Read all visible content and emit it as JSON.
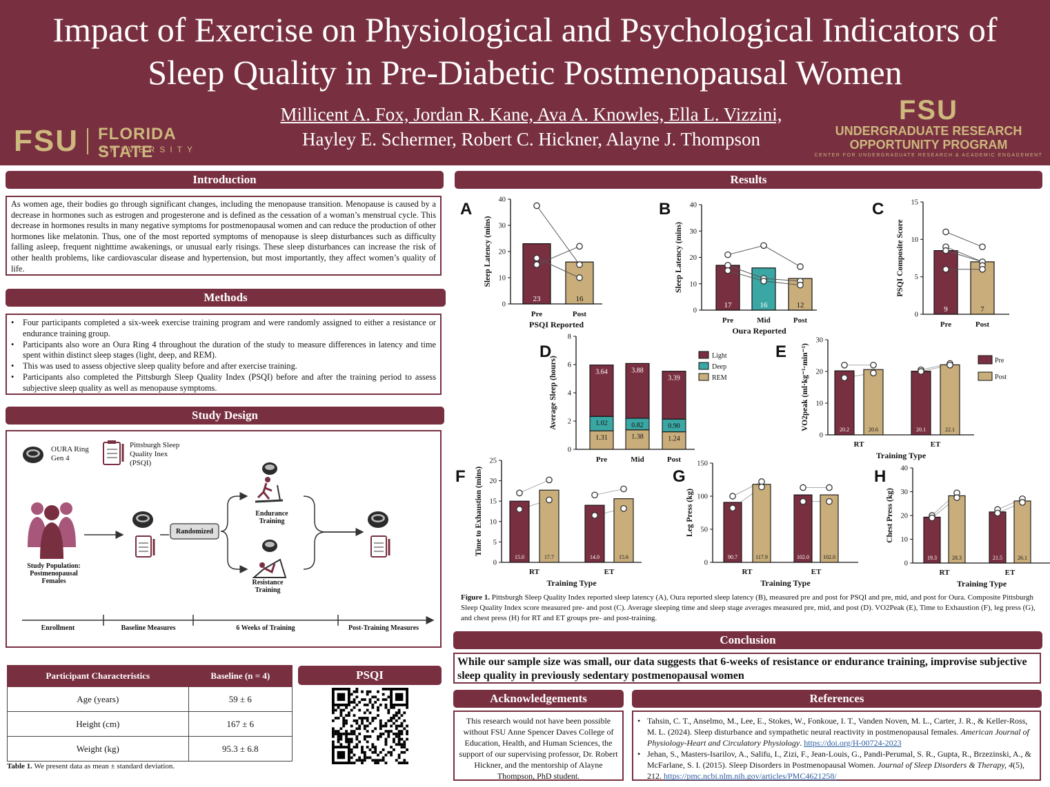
{
  "title": {
    "line1": "Impact of Exercise on Physiological and Psychological Indicators of",
    "line2": "Sleep Quality in Pre-Diabetic Postmenopausal Women"
  },
  "authors": {
    "line1": "Millicent A. Fox, Jordan R. Kane, Ava A. Knowles, Ella L. Vizzini,",
    "line2": "Hayley E. Schermer, Robert C. Hickner, Alayne J. Thompson"
  },
  "logos": {
    "fsu_mark": "FSU",
    "fsu_name": "FLORIDA STATE",
    "fsu_sub": "UNIVERSITY",
    "urop_mark": "FSU",
    "urop_line1": "UNDERGRADUATE RESEARCH",
    "urop_line2": "OPPORTUNITY PROGRAM",
    "urop_small": "CENTER FOR UNDERGRADUATE RESEARCH & ACADEMIC ENGAGEMENT"
  },
  "colors": {
    "garnet": "#782f40",
    "gold": "#c9ae7c",
    "teal": "#3ba7a4",
    "fsu_gold": "#cdb87d"
  },
  "introduction": {
    "heading": "Introduction",
    "text": "As women age, their bodies go through significant changes, including the menopause transition.  Menopause is caused by a decrease in hormones such as estrogen and progesterone and is defined as the cessation of a woman’s menstrual cycle. This decrease in hormones results in many negative symptoms for postmenopausal women and can reduce the production of other hormones like melatonin. Thus, one of the most reported symptoms of menopause is sleep disturbances such as difficulty falling asleep, frequent nighttime awakenings, or unusual early risings. These sleep disturbances can increase the risk of other health problems, like cardiovascular disease and hypertension, but most importantly, they affect women’s quality of life."
  },
  "methods": {
    "heading": "Methods",
    "items": [
      "Four participants completed a six-week exercise training program and were randomly assigned to either a resistance or endurance training group.",
      "Participants also wore an Oura Ring 4 throughout the duration of the study to measure differences in latency and time spent within distinct sleep stages (light, deep, and REM).",
      "This was used to assess objective sleep quality before and after exercise training.",
      "Participants also completed the Pittsburgh Sleep Quality Index (PSQI) before and after the training period to assess subjective sleep quality as well as menopause symptoms."
    ]
  },
  "study_design": {
    "heading": "Study Design",
    "oura_label": "OURA Ring\nGen 4",
    "psqi_label": "Pittsburgh Sleep\nQuality Inex\n(PSQI)",
    "population": "Study Population:\nPostmenopausal\nFemales",
    "randomized": "Randomized",
    "endurance": "Endurance\nTraining",
    "resistance": "Resistance\nTraining",
    "timeline": [
      "Enrollment",
      "Baseline Measures",
      "6 Weeks of Training",
      "Post-Training Measures"
    ]
  },
  "table": {
    "headers": [
      "Participant Characteristics",
      "Baseline (n = 4)"
    ],
    "rows": [
      [
        "Age (years)",
        "59 ± 6"
      ],
      [
        "Height (cm)",
        "167 ± 6"
      ],
      [
        "Weight (kg)",
        "95.3 ± 6.8"
      ]
    ],
    "caption_label": "Table 1.",
    "caption": " We present data as mean ± standard deviation."
  },
  "psqi": {
    "heading": "PSQI"
  },
  "results": {
    "heading": "Results"
  },
  "chart_data": [
    {
      "id": "A",
      "type": "bar",
      "title": "",
      "categories": [
        "Pre",
        "Post"
      ],
      "values": [
        23,
        16
      ],
      "labels": [
        "23",
        "16"
      ],
      "points": [
        [
          37.5,
          17.5,
          15
        ],
        [
          22,
          15,
          10
        ]
      ],
      "lines": [
        [
          37.5,
          15
        ],
        [
          15,
          22
        ],
        [
          17.5,
          10
        ]
      ],
      "xlabel": "PSQI Reported",
      "ylabel": "Sleep Latency (mins)",
      "ylim": [
        0,
        40
      ],
      "yticks": [
        0,
        10,
        20,
        30,
        40
      ]
    },
    {
      "id": "B",
      "type": "bar",
      "title": "",
      "categories": [
        "Pre",
        "Mid",
        "Post"
      ],
      "values": [
        17,
        16,
        12
      ],
      "labels": [
        "17",
        "16",
        "12"
      ],
      "points": [
        [
          21,
          17,
          15
        ],
        [
          24.5,
          12,
          11
        ],
        [
          16.5,
          11,
          9.5
        ]
      ],
      "lines": [
        [
          21,
          24.5,
          16.5
        ],
        [
          17,
          12,
          11
        ],
        [
          15,
          11,
          9.5
        ]
      ],
      "xlabel": "Oura Reported",
      "ylabel": "Sleep Latency (mins)",
      "ylim": [
        0,
        40
      ],
      "yticks": [
        0,
        10,
        20,
        30,
        40
      ]
    },
    {
      "id": "C",
      "type": "bar",
      "title": "",
      "categories": [
        "Pre",
        "Post"
      ],
      "values": [
        8.5,
        7
      ],
      "labels": [
        "9",
        "7"
      ],
      "points": [
        [
          11,
          9,
          8.5,
          6
        ],
        [
          9,
          7,
          6.5,
          6
        ]
      ],
      "lines": [
        [
          11,
          9
        ],
        [
          9,
          7
        ],
        [
          8.5,
          7
        ],
        [
          6,
          6
        ]
      ],
      "xlabel": "",
      "ylabel": "PSQI Composite Score",
      "ylim": [
        0,
        15
      ],
      "yticks": [
        0,
        5,
        10,
        15
      ]
    },
    {
      "id": "D",
      "type": "stacked-bar",
      "categories": [
        "Pre",
        "Mid",
        "Post"
      ],
      "series": [
        {
          "name": "Light",
          "values": [
            3.64,
            3.88,
            3.39
          ]
        },
        {
          "name": "Deep",
          "values": [
            1.02,
            0.82,
            0.9
          ]
        },
        {
          "name": "REM",
          "values": [
            1.31,
            1.38,
            1.24
          ]
        }
      ],
      "labels": {
        "Light": [
          "3.64",
          "3.88",
          "3.39"
        ],
        "Deep": [
          "1.02",
          "0.82",
          "0.90"
        ],
        "REM": [
          "1.31",
          "1.38",
          "1.24"
        ]
      },
      "ylabel": "Average Sleep (hours)",
      "ylim": [
        0,
        8
      ],
      "yticks": [
        0,
        2,
        4,
        6,
        8
      ],
      "legend": [
        "Light",
        "Deep",
        "REM"
      ]
    },
    {
      "id": "E",
      "type": "grouped-bar",
      "categories": [
        "RT",
        "ET"
      ],
      "series": [
        {
          "name": "Pre",
          "values": [
            20.2,
            20.1
          ]
        },
        {
          "name": "Post",
          "values": [
            20.6,
            22.1
          ]
        }
      ],
      "labels": [
        [
          "20.2",
          "20.6"
        ],
        [
          "20.1",
          "22.1"
        ]
      ],
      "points": [
        [
          [
            22,
            18
          ],
          [
            22,
            19.5
          ]
        ],
        [
          [
            20.5,
            20
          ],
          [
            22.5,
            22
          ]
        ]
      ],
      "xlabel": "Training Type",
      "ylabel": "VO2peak (ml·kg⁻¹·min⁻¹)",
      "ylim": [
        0,
        30
      ],
      "yticks": [
        0,
        10,
        20,
        30
      ],
      "legend": [
        "Pre",
        "Post"
      ]
    },
    {
      "id": "F",
      "type": "grouped-bar",
      "categories": [
        "RT",
        "ET"
      ],
      "series": [
        {
          "name": "Pre",
          "values": [
            15.0,
            14.0
          ]
        },
        {
          "name": "Post",
          "values": [
            17.7,
            15.6
          ]
        }
      ],
      "labels": [
        [
          "15.0",
          "17.7"
        ],
        [
          "14.0",
          "15.6"
        ]
      ],
      "points": [
        [
          [
            17,
            13
          ],
          [
            20.2,
            15.3
          ]
        ],
        [
          [
            16.5,
            11.5
          ],
          [
            18,
            13.2
          ]
        ]
      ],
      "xlabel": "Training Type",
      "ylabel": "Time to Exhaustion (mins)",
      "ylim": [
        0,
        25
      ],
      "yticks": [
        0,
        5,
        10,
        15,
        20,
        25
      ]
    },
    {
      "id": "G",
      "type": "grouped-bar",
      "categories": [
        "RT",
        "ET"
      ],
      "series": [
        {
          "name": "Pre",
          "values": [
            90.7,
            102.0
          ]
        },
        {
          "name": "Post",
          "values": [
            117.9,
            102.0
          ]
        }
      ],
      "labels": [
        [
          "90.7",
          "117.9"
        ],
        [
          "102.0",
          "102.0"
        ]
      ],
      "points": [
        [
          [
            100,
            82
          ],
          [
            122,
            114
          ]
        ],
        [
          [
            113,
            92
          ],
          [
            113,
            92
          ]
        ]
      ],
      "xlabel": "Training Type",
      "ylabel": "Leg Press (kg)",
      "ylim": [
        0,
        150
      ],
      "yticks": [
        0,
        50,
        100,
        150
      ]
    },
    {
      "id": "H",
      "type": "grouped-bar",
      "categories": [
        "RT",
        "ET"
      ],
      "series": [
        {
          "name": "Pre",
          "values": [
            19.3,
            21.5
          ]
        },
        {
          "name": "Post",
          "values": [
            28.3,
            26.1
          ]
        }
      ],
      "labels": [
        [
          "19.3",
          "28.3"
        ],
        [
          "21.5",
          "26.1"
        ]
      ],
      "points": [
        [
          [
            20,
            19
          ],
          [
            29.5,
            27.5
          ]
        ],
        [
          [
            22.5,
            21
          ],
          [
            27,
            25.5
          ]
        ]
      ],
      "xlabel": "Training Type",
      "ylabel": "Chest Press (kg)",
      "ylim": [
        0,
        40
      ],
      "yticks": [
        0,
        10,
        20,
        30,
        40
      ]
    }
  ],
  "figure_caption": {
    "label": "Figure 1.",
    "text": " Pittsburgh Sleep Quality Index reported sleep latency (A), Oura reported sleep latency (B), measured pre and post for PSQI and pre, mid, and post for Oura. Composite Pittsburgh Sleep Quality Index score measured pre- and post (C). Average sleeping time and sleep stage averages measured pre, mid, and post (D). VO2Peak (E), Time to Exhaustion (F), leg press (G), and chest press (H) for RT and ET groups pre- and post-training."
  },
  "conclusion": {
    "heading": "Conclusion",
    "text": "While our sample size was small, our data suggests that 6-weeks of resistance or endurance training, improvise subjective sleep quality in previously sedentary postmenopausal women"
  },
  "acknowledgements": {
    "heading": "Acknowledgements",
    "text": "This research would not have been possible without FSU Anne Spencer Daves College of Education, Health, and Human Sciences, the support of our supervising professor, Dr. Robert Hickner, and the mentorship of Alayne Thompson, PhD student."
  },
  "references": {
    "heading": "References",
    "items": [
      {
        "text": "Tahsin, C. T., Anselmo, M., Lee, E., Stokes, W., Fonkoue, I. T., Vanden Noven, M. L., Carter, J. R., & Keller-Ross, M. L. (2024). Sleep disturbance and sympathetic neural reactivity in postmenopausal females. ",
        "journal": "American Journal of Physiology-Heart and Circulatory Physiology",
        "after": ". ",
        "link": "https://doi.org/H-00724-2023"
      },
      {
        "text": "Jehan, S., Masters-Isarilov, A., Salifu, I., Zizi, F., Jean-Louis, G., Pandi-Perumal, S. R., Gupta, R., Brzezinski, A., & McFarlane, S. I. (2015). Sleep Disorders in Postmenopausal Women. ",
        "journal": "Journal of Sleep Disorders & Therapy, 4",
        "after": "(5), 212. ",
        "link": "https://pmc.ncbi.nlm.nih.gov/articles/PMC4621258/"
      }
    ]
  }
}
